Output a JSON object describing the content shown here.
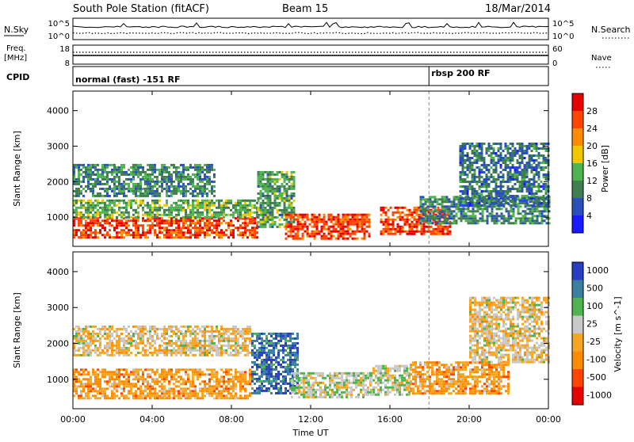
{
  "header": {
    "station": "South Pole Station (fitACF)",
    "beam": "Beam 15",
    "date": "18/Mar/2014"
  },
  "noise_panel": {
    "left_label": "N.Sky",
    "right_label": "N.Search",
    "left_ticks": [
      "10^5",
      "10^0"
    ],
    "right_ticks": [
      "10^5",
      "10^0"
    ]
  },
  "freq_panel": {
    "left_label_line1": "Freq.",
    "left_label_line2": "[MHz]",
    "right_label": "Nave",
    "left_ticks": [
      "18",
      "8"
    ],
    "right_ticks": [
      "60",
      "0"
    ]
  },
  "cpid_panel": {
    "label": "CPID",
    "modes": [
      {
        "name": "normal (fast) -151 RF",
        "start_hour": 0
      },
      {
        "name": "rbsp 200 RF",
        "start_hour": 17.97
      }
    ]
  },
  "x_axis": {
    "label": "Time UT",
    "ticks": [
      {
        "hour": 0,
        "label": "00:00"
      },
      {
        "hour": 4,
        "label": "04:00"
      },
      {
        "hour": 8,
        "label": "08:00"
      },
      {
        "hour": 12,
        "label": "12:00"
      },
      {
        "hour": 16,
        "label": "16:00"
      },
      {
        "hour": 20,
        "label": "20:00"
      },
      {
        "hour": 24,
        "label": "00:00"
      }
    ]
  },
  "colors": {
    "power": [
      "#1a1aff",
      "#2a4fbf",
      "#3f7f4f",
      "#4fb34f",
      "#f0c800",
      "#ff8c00",
      "#ff4500",
      "#e60000"
    ],
    "velocity": [
      "#e60000",
      "#ff4500",
      "#ff8c00",
      "#f5a623",
      "#c8c8c8",
      "#4fb34f",
      "#3a7fa0",
      "#2a3fbf"
    ]
  },
  "chart_data": [
    {
      "type": "heatmap",
      "title": "",
      "xlabel": "Time UT",
      "ylabel": "Slant Range [km]",
      "xlim": [
        0,
        24
      ],
      "ylim": [
        180,
        4550
      ],
      "y_ticks": [
        1000,
        2000,
        3000,
        4000
      ],
      "colorbar": {
        "label": "Power [dB]",
        "ticks": [
          "4",
          "8",
          "12",
          "16",
          "20",
          "24",
          "28"
        ],
        "range": [
          0,
          30
        ]
      },
      "regions": [
        {
          "t0": 0,
          "t1": 9.3,
          "r0": 400,
          "r1": 1000,
          "value": 26
        },
        {
          "t0": 0,
          "t1": 9.3,
          "r0": 1000,
          "r1": 1500,
          "value": 12
        },
        {
          "t0": 0,
          "t1": 7.2,
          "r0": 1600,
          "r1": 2500,
          "value": 9
        },
        {
          "t0": 9.3,
          "t1": 11.2,
          "r0": 700,
          "r1": 2300,
          "value": 11
        },
        {
          "t0": 10.7,
          "t1": 15.0,
          "r0": 400,
          "r1": 1100,
          "value": 26
        },
        {
          "t0": 15.5,
          "t1": 19.0,
          "r0": 500,
          "r1": 1300,
          "value": 26
        },
        {
          "t0": 17.5,
          "t1": 24.0,
          "r0": 800,
          "r1": 1600,
          "value": 9
        },
        {
          "t0": 19.5,
          "t1": 24.0,
          "r0": 1300,
          "r1": 3100,
          "value": 7
        }
      ]
    },
    {
      "type": "heatmap",
      "title": "",
      "xlabel": "Time UT",
      "ylabel": "Slant Range [km]",
      "xlim": [
        0,
        24
      ],
      "ylim": [
        180,
        4550
      ],
      "y_ticks": [
        1000,
        2000,
        3000,
        4000
      ],
      "colorbar": {
        "label": "Velocity [m s^-1]",
        "ticks": [
          "1000",
          "500",
          "100",
          "25",
          "-25",
          "-100",
          "-500",
          "-1000"
        ],
        "range": [
          -1000,
          1000
        ]
      },
      "regions": [
        {
          "t0": 0,
          "t1": 9.0,
          "r0": 450,
          "r1": 1300,
          "value": -300
        },
        {
          "t0": 0,
          "t1": 9.0,
          "r0": 1700,
          "r1": 2500,
          "value": 0
        },
        {
          "t0": 9.0,
          "t1": 11.3,
          "r0": 600,
          "r1": 2300,
          "value": 800
        },
        {
          "t0": 11.0,
          "t1": 15.0,
          "r0": 500,
          "r1": 1200,
          "value": 200
        },
        {
          "t0": 15.0,
          "t1": 17.0,
          "r0": 600,
          "r1": 1400,
          "value": 200
        },
        {
          "t0": 17.0,
          "t1": 22.0,
          "r0": 600,
          "r1": 1500,
          "value": -300
        },
        {
          "t0": 20.0,
          "t1": 24.0,
          "r0": 1500,
          "r1": 3300,
          "value": 0
        }
      ]
    }
  ]
}
